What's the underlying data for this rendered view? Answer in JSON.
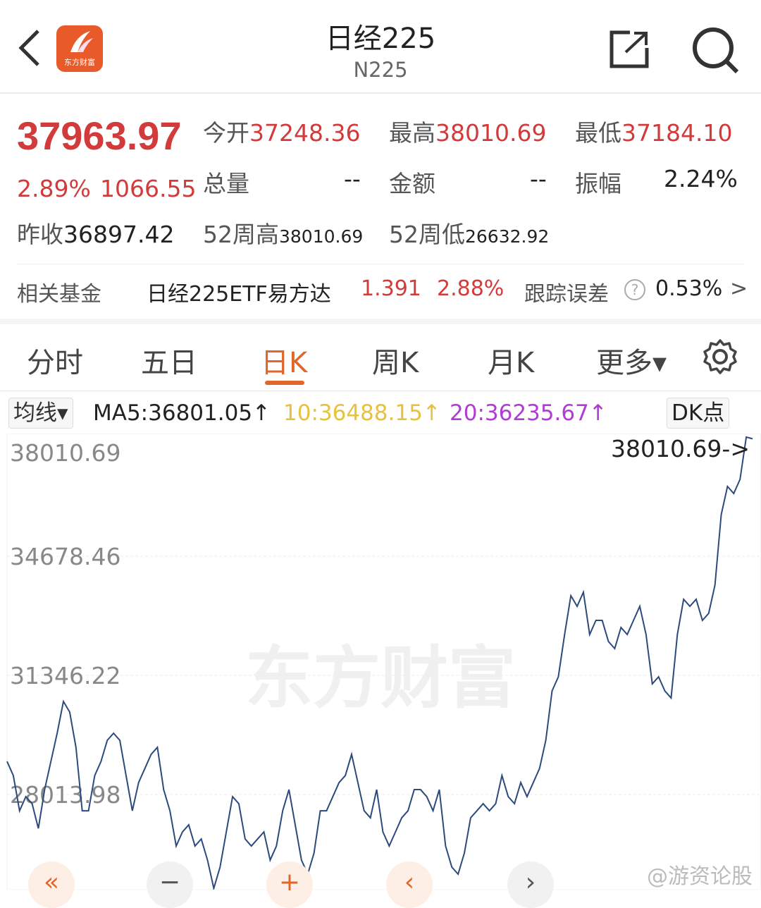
{
  "header": {
    "title": "日经225",
    "code": "N225",
    "logo_text": "东方财富"
  },
  "quote": {
    "price": "37963.97",
    "change_pct": "2.89%",
    "change": "1066.55",
    "open_label": "今开",
    "open": "37248.36",
    "high_label": "最高",
    "high": "38010.69",
    "low_label": "最低",
    "low": "37184.10",
    "volume_label": "总量",
    "volume": "--",
    "amount_label": "金额",
    "amount": "--",
    "amplitude_label": "振幅",
    "amplitude": "2.24%",
    "prev_close_label": "昨收",
    "prev_close": "36897.42",
    "wk52_high_label": "52周高",
    "wk52_high": "38010.69",
    "wk52_low_label": "52周低",
    "wk52_low": "26632.92"
  },
  "fund": {
    "label": "相关基金",
    "name": "日经225ETF易方达",
    "price": "1.391",
    "pct": "2.88%",
    "error_label": "跟踪误差",
    "error": "0.53%",
    "arrow": ">"
  },
  "tabs": [
    {
      "label": "分时"
    },
    {
      "label": "五日"
    },
    {
      "label": "日K"
    },
    {
      "label": "周K"
    },
    {
      "label": "月K"
    },
    {
      "label": "更多▾"
    }
  ],
  "ma": {
    "selector": "均线▾",
    "ma5": "MA5:36801.05↑",
    "ma10": "10:36488.15↑",
    "ma20": "20:36235.67↑",
    "dk": "DK点"
  },
  "colors": {
    "red": "#d23b3b",
    "accent": "#e0662a",
    "line": "#2c4a7c",
    "ma10": "#e8c23a",
    "ma20": "#b23bd6"
  },
  "chart_data": {
    "type": "line",
    "ylim": [
      25390,
      38011
    ],
    "ytick_labels": [
      "38010.69",
      "34678.46",
      "31346.22",
      "28013.98"
    ],
    "yticks": [
      38010.69,
      34678.46,
      31346.22,
      28013.98
    ],
    "max_label": "38010.69->",
    "watermark": "东方财富",
    "values": [
      28940,
      28545,
      27559,
      27954,
      27757,
      27066,
      28151,
      28940,
      29728,
      30616,
      30320,
      29334,
      27559,
      27559,
      28545,
      28940,
      29531,
      29728,
      29531,
      28545,
      27559,
      28348,
      28742,
      29137,
      29334,
      28151,
      27559,
      26573,
      26967,
      27165,
      26573,
      26770,
      26179,
      25390,
      25982,
      26967,
      27954,
      27757,
      26770,
      26573,
      26770,
      26967,
      26179,
      26573,
      27559,
      28151,
      27165,
      26179,
      25785,
      26376,
      27559,
      27559,
      27954,
      28348,
      28545,
      29137,
      28348,
      27559,
      27362,
      28151,
      26967,
      26573,
      26967,
      27362,
      27559,
      28151,
      28151,
      27954,
      27559,
      28151,
      26573,
      25982,
      25785,
      26376,
      27362,
      27559,
      27757,
      27559,
      27757,
      28545,
      27954,
      27757,
      28348,
      27954,
      28348,
      28742,
      29531,
      30912,
      31306,
      32489,
      33574,
      33278,
      33672,
      32489,
      32884,
      32884,
      32292,
      32095,
      32686,
      32489,
      32884,
      33278,
      32489,
      31109,
      31306,
      30912,
      30714,
      32489,
      33475,
      33278,
      33475,
      32884,
      33081,
      33870,
      35842,
      36631,
      36433,
      36828,
      38011,
      37964
    ]
  },
  "controls": {
    "first": "«",
    "zoom_out": "−",
    "zoom_in": "+",
    "prev": "‹",
    "next": "›"
  },
  "watermark": "@游资论股"
}
